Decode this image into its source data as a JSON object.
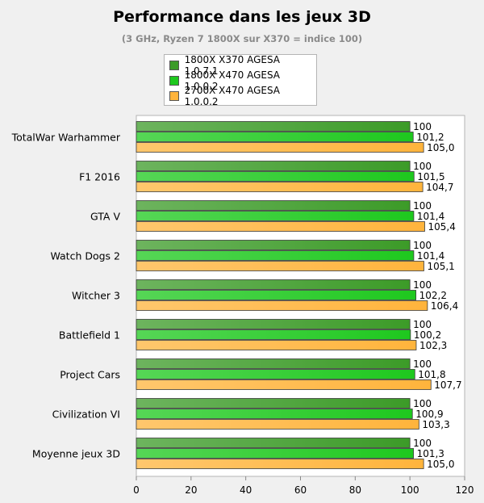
{
  "chart_data": {
    "type": "bar",
    "orientation": "horizontal",
    "title": "Performance dans les jeux 3D",
    "subtitle": "(3 GHz, Ryzen 7 1800X sur X370 = indice 100)",
    "categories": [
      "TotalWar Warhammer",
      "F1 2016",
      "GTA V",
      "Watch Dogs 2",
      "Witcher 3",
      "Battlefield 1",
      "Project Cars",
      "Civilization VI",
      "Moyenne jeux 3D"
    ],
    "series": [
      {
        "name": "1800X X370 AGESA 1.0.7.1",
        "color": "#3c9b28",
        "values": [
          100,
          100,
          100,
          100,
          100,
          100,
          100,
          100,
          100
        ],
        "labels": [
          "100",
          "100",
          "100",
          "100",
          "100",
          "100",
          "100",
          "100",
          "100"
        ]
      },
      {
        "name": "1800X X470 AGESA 1.0.0.2",
        "color": "#1ec81e",
        "values": [
          101.2,
          101.5,
          101.4,
          101.4,
          102.2,
          100.2,
          101.8,
          100.9,
          101.3
        ],
        "labels": [
          "101,2",
          "101,5",
          "101,4",
          "101,4",
          "102,2",
          "100,2",
          "101,8",
          "100,9",
          "101,3"
        ]
      },
      {
        "name": "2700X X470 AGESA 1.0.0.2",
        "color": "#ffb43c",
        "values": [
          105.0,
          104.7,
          105.4,
          105.1,
          106.4,
          102.3,
          107.7,
          103.3,
          105.0
        ],
        "labels": [
          "105,0",
          "104,7",
          "105,4",
          "105,1",
          "106,4",
          "102,3",
          "107,7",
          "103,3",
          "105,0"
        ]
      }
    ],
    "xlim": [
      0,
      120
    ],
    "xticks": [
      "0",
      "20",
      "40",
      "60",
      "80",
      "100",
      "120"
    ],
    "grid": false,
    "legend_position": "top"
  }
}
